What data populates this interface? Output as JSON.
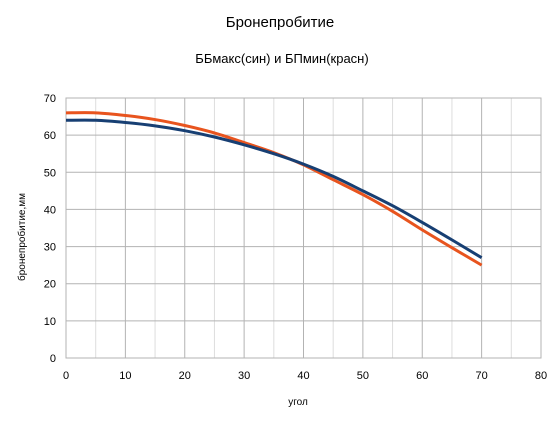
{
  "chart_data": {
    "type": "line",
    "title": "Бронепробитие",
    "subtitle": "ББмакс(син) и БПмин(красн)",
    "xlabel": "угол",
    "ylabel": "бронепробитие,мм",
    "xlim": [
      0,
      80
    ],
    "ylim": [
      0,
      70
    ],
    "xticks": [
      0,
      10,
      20,
      30,
      40,
      50,
      60,
      70,
      80
    ],
    "yticks": [
      0,
      10,
      20,
      30,
      40,
      50,
      60,
      70
    ],
    "grid": true,
    "legend": "none",
    "series": [
      {
        "color": "#e8541e",
        "x": [
          0,
          5,
          10,
          15,
          20,
          25,
          30,
          35,
          40,
          45,
          50,
          55,
          60,
          65,
          70
        ],
        "y": [
          66,
          66,
          65.3,
          64.2,
          62.6,
          60.6,
          58,
          55.3,
          52,
          48,
          44,
          39.5,
          34.5,
          29.7,
          25
        ]
      },
      {
        "color": "#173f73",
        "x": [
          0,
          5,
          10,
          15,
          20,
          25,
          30,
          35,
          40,
          45,
          50,
          55,
          60,
          65,
          70
        ],
        "y": [
          64,
          64,
          63.4,
          62.5,
          61.2,
          59.5,
          57.4,
          55,
          52.2,
          48.9,
          45,
          41,
          36.5,
          31.8,
          27
        ]
      }
    ]
  }
}
